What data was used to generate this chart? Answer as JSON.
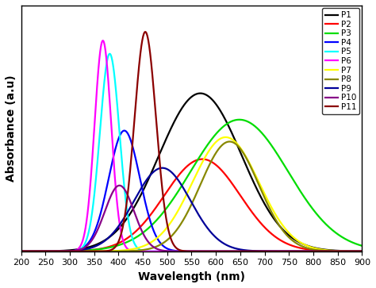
{
  "xlabel": "Wavelength (nm)",
  "ylabel": "Absorbance (a.u)",
  "xlim": [
    200,
    900
  ],
  "ylim": [
    0,
    1.12
  ],
  "x_ticks": [
    200,
    250,
    300,
    350,
    400,
    450,
    500,
    550,
    600,
    650,
    700,
    750,
    800,
    850,
    900
  ],
  "series": [
    {
      "label": "P1",
      "color": "#000000",
      "peak": 568,
      "sigma": 85,
      "amplitude": 0.72
    },
    {
      "label": "P2",
      "color": "#ff0000",
      "peak": 572,
      "sigma": 78,
      "amplitude": 0.42
    },
    {
      "label": "P3",
      "color": "#00dd00",
      "peak": 648,
      "sigma": 100,
      "amplitude": 0.6
    },
    {
      "label": "P4",
      "color": "#0000ff",
      "peak": 412,
      "sigma": 32,
      "amplitude": 0.55
    },
    {
      "label": "P5",
      "color": "#00ffff",
      "peak": 382,
      "sigma": 20,
      "amplitude": 0.9
    },
    {
      "label": "P6",
      "color": "#ff00ff",
      "peak": 368,
      "sigma": 17,
      "amplitude": 0.96
    },
    {
      "label": "P7",
      "color": "#ffff00",
      "peak": 620,
      "sigma": 68,
      "amplitude": 0.52
    },
    {
      "label": "P8",
      "color": "#888800",
      "peak": 628,
      "sigma": 60,
      "amplitude": 0.5
    },
    {
      "label": "P9",
      "color": "#000099",
      "peak": 490,
      "sigma": 58,
      "amplitude": 0.38
    },
    {
      "label": "P10",
      "color": "#880088",
      "peak": 402,
      "sigma": 30,
      "amplitude": 0.3
    },
    {
      "label": "P11",
      "color": "#8b0000",
      "peak": 455,
      "sigma": 22,
      "amplitude": 1.0
    }
  ],
  "background_color": "#ffffff",
  "linewidth": 1.6,
  "legend_fontsize": 7.5,
  "axis_label_fontsize": 10,
  "tick_fontsize": 8,
  "legend_loc": "upper right"
}
